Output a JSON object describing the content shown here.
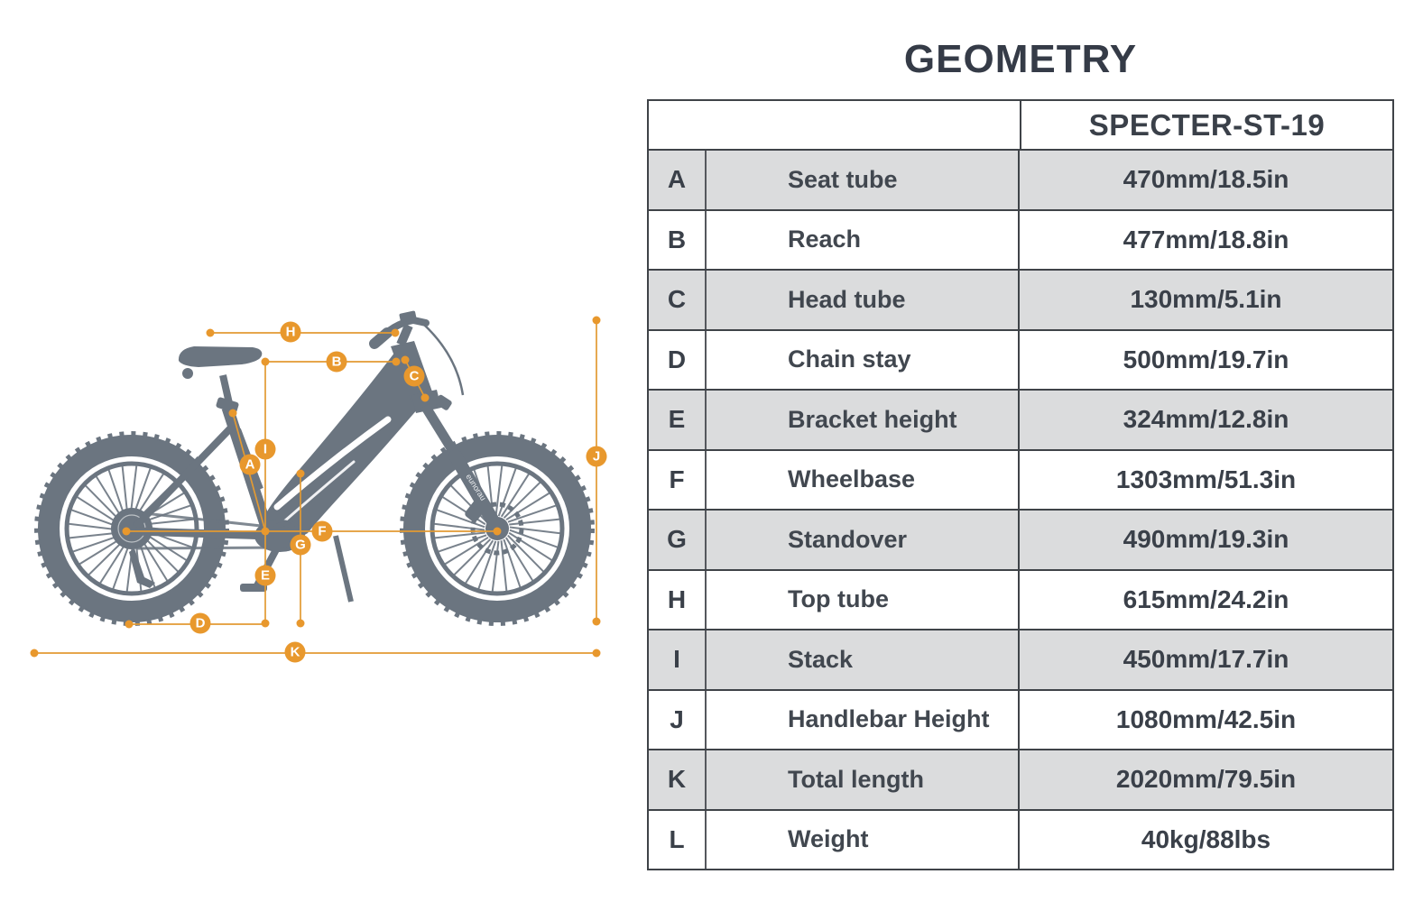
{
  "title": "GEOMETRY",
  "table": {
    "model": "SPECTER-ST-19",
    "rows": [
      {
        "letter": "A",
        "label": "Seat tube",
        "value": "470mm/18.5in"
      },
      {
        "letter": "B",
        "label": "Reach",
        "value": "477mm/18.8in"
      },
      {
        "letter": "C",
        "label": "Head tube",
        "value": "130mm/5.1in"
      },
      {
        "letter": "D",
        "label": "Chain stay",
        "value": "500mm/19.7in"
      },
      {
        "letter": "E",
        "label": "Bracket height",
        "value": "324mm/12.8in"
      },
      {
        "letter": "F",
        "label": "Wheelbase",
        "value": "1303mm/51.3in"
      },
      {
        "letter": "G",
        "label": "Standover",
        "value": "490mm/19.3in"
      },
      {
        "letter": "H",
        "label": "Top tube",
        "value": "615mm/24.2in"
      },
      {
        "letter": "I",
        "label": "Stack",
        "value": "450mm/17.7in"
      },
      {
        "letter": "J",
        "label": "Handlebar Height",
        "value": "1080mm/42.5in"
      },
      {
        "letter": "K",
        "label": "Total length",
        "value": "2020mm/79.5in"
      },
      {
        "letter": "L",
        "label": "Weight",
        "value": "40kg/88lbs"
      }
    ]
  },
  "diagram": {
    "fork_brand": "eunorau",
    "markers": [
      "A",
      "B",
      "C",
      "D",
      "E",
      "F",
      "G",
      "H",
      "I",
      "J",
      "K"
    ],
    "colors": {
      "accent": "#e8982d",
      "bike": "#6b7580"
    }
  }
}
